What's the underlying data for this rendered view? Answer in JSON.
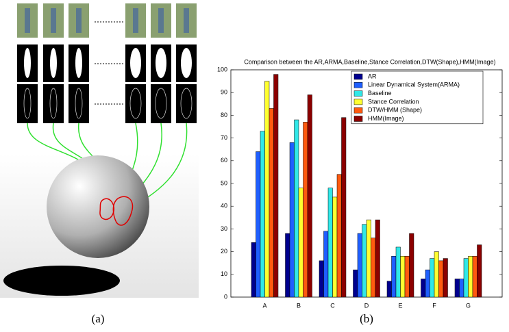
{
  "captions": [
    "(a)",
    "(b)"
  ],
  "chart_data": {
    "type": "bar",
    "title": "Comparison between the AR,ARMA,Baseline,Stance Correlation,DTW(Shape),HMM(Image)",
    "categories": [
      "A",
      "B",
      "C",
      "D",
      "E",
      "F",
      "G"
    ],
    "series": [
      {
        "name": "AR",
        "color": "#00008f",
        "values": [
          24,
          28,
          16,
          12,
          7,
          8,
          8
        ]
      },
      {
        "name": "Linear Dynamical System(ARMA)",
        "color": "#1f5fff",
        "values": [
          64,
          68,
          29,
          28,
          18,
          12,
          8
        ]
      },
      {
        "name": "Baseline",
        "color": "#30e8e8",
        "values": [
          73,
          78,
          48,
          32,
          22,
          17,
          17
        ]
      },
      {
        "name": "Stance Correlation",
        "color": "#ffff30",
        "values": [
          95,
          48,
          44,
          34,
          18,
          20,
          18
        ]
      },
      {
        "name": "DTW/HMM (Shape)",
        "color": "#ff5a10",
        "values": [
          83,
          77,
          54,
          26,
          18,
          16,
          18
        ]
      },
      {
        "name": "HMM(Image)",
        "color": "#8b0000",
        "values": [
          98,
          89,
          79,
          34,
          28,
          17,
          23
        ]
      }
    ],
    "ylim": [
      0,
      100
    ],
    "yticks": [
      0,
      10,
      20,
      30,
      40,
      50,
      60,
      70,
      80,
      90,
      100
    ],
    "grid": false,
    "legend": "upper right"
  }
}
